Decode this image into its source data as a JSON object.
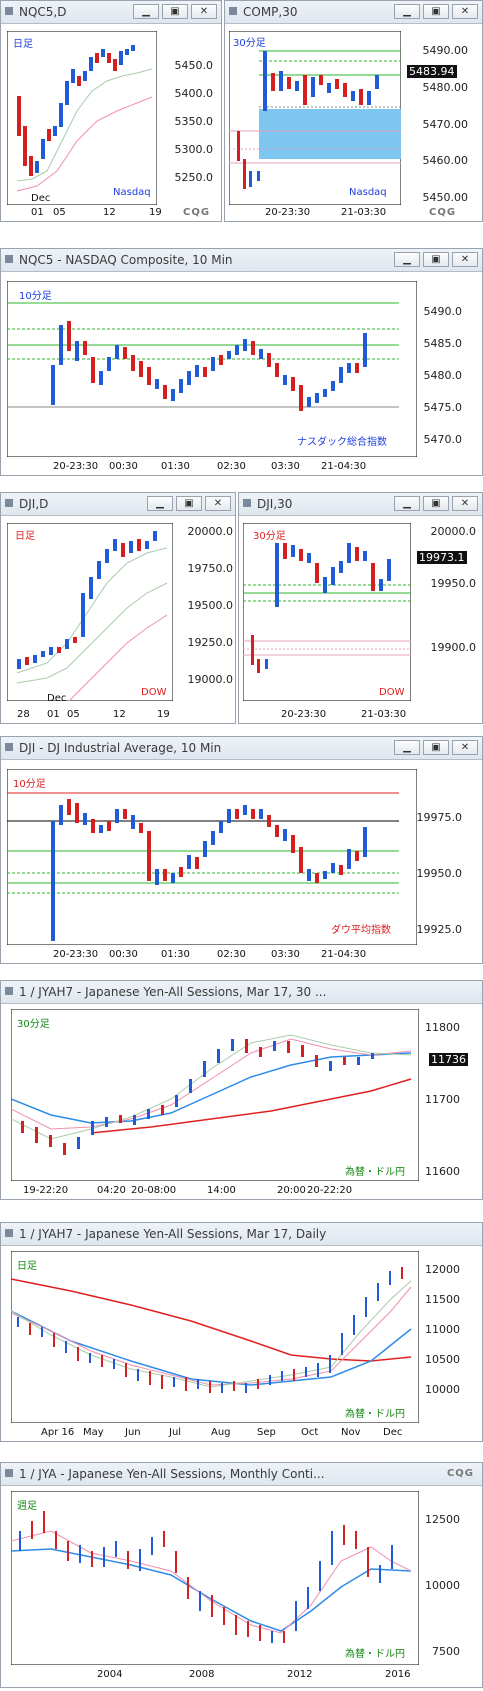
{
  "windows": [
    {
      "id": "w1",
      "title": "NQC5,D",
      "tag": "日足",
      "tag_color": "#1d3de0",
      "brand": "Nasdaq",
      "brand_color": "#1d3de0",
      "yticks": [
        "5450.0",
        "5400.0",
        "5350.0",
        "5300.0",
        "5250.0"
      ],
      "xticks": [
        "Dec",
        "01",
        "05",
        "12",
        "19"
      ]
    },
    {
      "id": "w2",
      "title": "COMP,30",
      "tag": "30分足",
      "tag_color": "#1d3de0",
      "brand": "Nasdaq",
      "brand_color": "#1d3de0",
      "yticks": [
        "5490.00",
        "5480.00",
        "5470.00",
        "5460.00",
        "5450.00"
      ],
      "price": "5483.94",
      "xticks": [
        "20-23:30",
        "21-03:30"
      ]
    },
    {
      "id": "w3",
      "title": "NQC5 - NASDAQ Composite, 10 Min",
      "tag": "10分足",
      "tag_color": "#1d3de0",
      "brand": "ナスダック総合指数",
      "brand_color": "#1d3de0",
      "yticks": [
        "5490.0",
        "5485.0",
        "5480.0",
        "5475.0",
        "5470.0"
      ],
      "xticks": [
        "20-23:30",
        "00:30",
        "01:30",
        "02:30",
        "03:30",
        "21-04:30"
      ]
    },
    {
      "id": "w4",
      "title": "DJI,D",
      "tag": "日足",
      "tag_color": "#e01d1d",
      "brand": "DOW",
      "brand_color": "#e01d1d",
      "yticks": [
        "20000.0",
        "19750.0",
        "19500.0",
        "19250.0",
        "19000.0"
      ],
      "xticks": [
        "28",
        "01",
        "05",
        "12",
        "19",
        "Dec"
      ]
    },
    {
      "id": "w5",
      "title": "DJI,30",
      "tag": "30分足",
      "tag_color": "#e01d1d",
      "brand": "DOW",
      "brand_color": "#e01d1d",
      "yticks": [
        "20000.0",
        "19950.0",
        "19900.0"
      ],
      "price": "19973.1",
      "xticks": [
        "20-23:30",
        "21-03:30"
      ]
    },
    {
      "id": "w6",
      "title": "DJI - DJ Industrial Average, 10 Min",
      "tag": "10分足",
      "tag_color": "#e01d1d",
      "brand": "ダウ平均指数",
      "brand_color": "#e01d1d",
      "yticks": [
        "19975.0",
        "19950.0",
        "19925.0"
      ],
      "xticks": [
        "20-23:30",
        "00:30",
        "01:30",
        "02:30",
        "03:30",
        "21-04:30"
      ]
    },
    {
      "id": "w7",
      "title": "1 / JYAH7 - Japanese Yen-All Sessions, Mar 17, 30 ...",
      "tag": "30分足",
      "tag_color": "#118811",
      "brand": "為替・ドル円",
      "brand_color": "#118811",
      "yticks": [
        "11800",
        "11700",
        "11600"
      ],
      "price": "11736",
      "xticks": [
        "19-22:20",
        "04:20",
        "20-08:00",
        "14:00",
        "20:00",
        "20-22:20"
      ]
    },
    {
      "id": "w8",
      "title": "1 / JYAH7 - Japanese Yen-All Sessions, Mar 17, Daily",
      "tag": "日足",
      "tag_color": "#118811",
      "brand": "為替・ドル円",
      "brand_color": "#118811",
      "yticks": [
        "12000",
        "11500",
        "11000",
        "10500",
        "10000"
      ],
      "xticks": [
        "Apr 16",
        "May",
        "Jun",
        "Jul",
        "Aug",
        "Sep",
        "Oct",
        "Nov",
        "Dec"
      ]
    },
    {
      "id": "w9",
      "title": "1 / JYA - Japanese Yen-All Sessions, Monthly Conti...",
      "tag": "週足",
      "tag_color": "#118811",
      "brand": "為替・ドル円",
      "brand_color": "#118811",
      "yticks": [
        "12500",
        "10000",
        "7500"
      ],
      "xticks": [
        "2004",
        "2008",
        "2012",
        "2016"
      ]
    }
  ],
  "buttons": {
    "minimize": "▁",
    "restore": "▣",
    "close": "✕"
  },
  "cqg_logo": "CQG",
  "colors": {
    "up": "#1f5bd6",
    "down": "#d42020",
    "green_line": "#2bb52b",
    "red_line": "#e02020",
    "blue_line": "#2f8be8",
    "fill": "#7cc6f0"
  }
}
